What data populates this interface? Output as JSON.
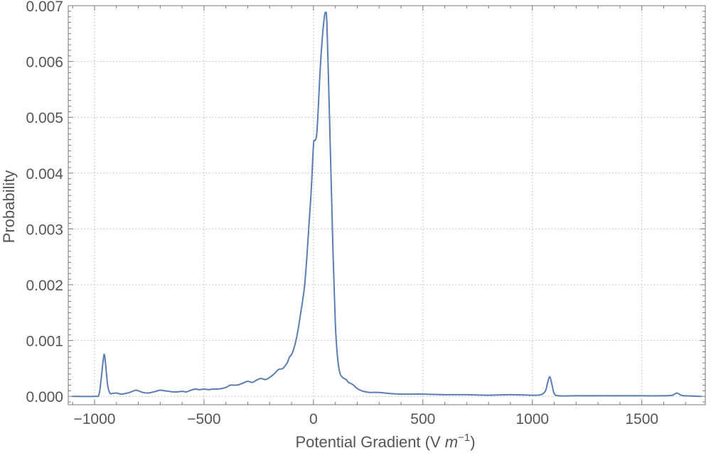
{
  "chart_data": {
    "type": "line",
    "title": "",
    "xlabel": "Potential Gradient (V m⁻¹)",
    "xlabel_parts": {
      "main": "Potential Gradient (V ",
      "unit": "m",
      "exponent": "−1",
      "close": ")"
    },
    "ylabel": "Probability",
    "xlim": [
      -1120,
      1790
    ],
    "ylim": [
      -0.00015,
      0.007
    ],
    "grid": true,
    "x_ticks": [
      -1000,
      -500,
      0,
      500,
      1000,
      1500
    ],
    "x_tick_labels": [
      "−1000",
      "−500",
      "0",
      "500",
      "1000",
      "1500"
    ],
    "y_ticks": [
      0.0,
      0.001,
      0.002,
      0.003,
      0.004,
      0.005,
      0.006,
      0.007
    ],
    "y_tick_labels": [
      "0.000",
      "0.001",
      "0.002",
      "0.003",
      "0.004",
      "0.005",
      "0.006",
      "0.007"
    ],
    "series": [
      {
        "color": "#5b7db5",
        "x": [
          -1100,
          -1000,
          -980,
          -970,
          -960,
          -955,
          -950,
          -940,
          -930,
          -920,
          -900,
          -880,
          -860,
          -840,
          -820,
          -810,
          -800,
          -780,
          -760,
          -740,
          -720,
          -700,
          -680,
          -660,
          -640,
          -620,
          -600,
          -580,
          -560,
          -540,
          -520,
          -500,
          -480,
          -460,
          -440,
          -420,
          -400,
          -380,
          -360,
          -340,
          -320,
          -300,
          -280,
          -260,
          -240,
          -220,
          -200,
          -180,
          -160,
          -140,
          -120,
          -110,
          -100,
          -90,
          -80,
          -70,
          -60,
          -50,
          -40,
          -30,
          -20,
          -10,
          0,
          5,
          10,
          15,
          20,
          25,
          30,
          40,
          50,
          55,
          60,
          65,
          70,
          80,
          90,
          100,
          110,
          120,
          130,
          140,
          150,
          160,
          180,
          200,
          220,
          240,
          260,
          300,
          350,
          400,
          500,
          600,
          700,
          800,
          900,
          1000,
          1040,
          1060,
          1070,
          1080,
          1090,
          1100,
          1120,
          1200,
          1300,
          1400,
          1500,
          1600,
          1640,
          1660,
          1680,
          1700,
          1770
        ],
        "y": [
          0.0,
          0.0,
          3e-05,
          0.0003,
          0.00066,
          0.00075,
          0.0006,
          0.0002,
          6e-05,
          5e-05,
          6e-05,
          4e-05,
          5e-05,
          7e-05,
          0.0001,
          0.00011,
          0.0001,
          7e-05,
          6e-05,
          7e-05,
          9e-05,
          0.00011,
          0.0001,
          9e-05,
          8e-05,
          8e-05,
          9e-05,
          8e-05,
          0.00011,
          0.00013,
          0.00012,
          0.00013,
          0.00012,
          0.00013,
          0.00013,
          0.00014,
          0.00016,
          0.0002,
          0.0002,
          0.00021,
          0.00024,
          0.00027,
          0.00025,
          0.00029,
          0.00032,
          0.0003,
          0.00034,
          0.0004,
          0.00048,
          0.0005,
          0.0006,
          0.0007,
          0.00075,
          0.00085,
          0.001,
          0.0012,
          0.00145,
          0.0017,
          0.002,
          0.0025,
          0.0031,
          0.0037,
          0.0045,
          0.00458,
          0.0046,
          0.0047,
          0.005,
          0.0054,
          0.0058,
          0.0064,
          0.0068,
          0.00688,
          0.0068,
          0.0062,
          0.0055,
          0.004,
          0.0025,
          0.0013,
          0.0007,
          0.00043,
          0.00035,
          0.00032,
          0.0003,
          0.00025,
          0.00021,
          0.00014,
          0.0001,
          8e-05,
          7e-05,
          7e-05,
          5e-05,
          4e-05,
          4e-05,
          3e-05,
          3e-05,
          2e-05,
          3e-05,
          2e-05,
          3e-05,
          0.0001,
          0.00025,
          0.00035,
          0.0002,
          5e-05,
          1e-05,
          1e-05,
          1e-05,
          1e-05,
          1e-05,
          1e-05,
          2e-05,
          6e-05,
          2e-05,
          1e-05,
          0.0
        ]
      }
    ]
  }
}
